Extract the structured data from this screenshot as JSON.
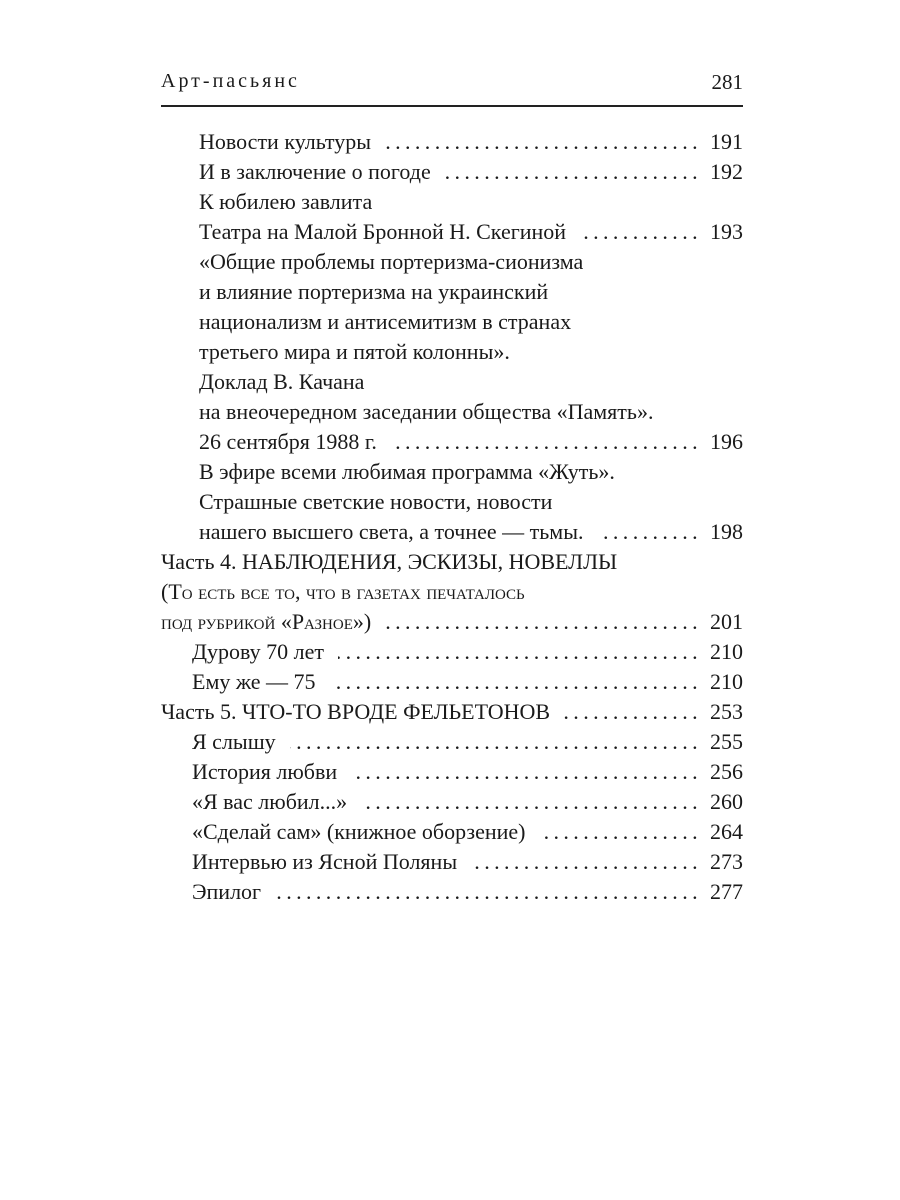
{
  "running_head": {
    "title": "Арт-пасьянс",
    "page_number": "281"
  },
  "toc": [
    {
      "text": "Новости культуры",
      "page": "191",
      "level": 2
    },
    {
      "text": "И в заключение о погоде",
      "page": "192",
      "level": 2
    },
    {
      "text": "К юбилею завлита",
      "page": null,
      "level": 2
    },
    {
      "text": "Театра на Малой Бронной Н. Скегиной",
      "page": "193",
      "level": 2
    },
    {
      "text": "«Общие проблемы портеризма-сионизма",
      "page": null,
      "level": 2
    },
    {
      "text": "и влияние портеризма  на украинский",
      "page": null,
      "level": 2
    },
    {
      "text": "национализм и антисемитизм в странах",
      "page": null,
      "level": 2
    },
    {
      "text": "третьего мира и пятой колонны».",
      "page": null,
      "level": 2
    },
    {
      "text": "Доклад В. Качана",
      "page": null,
      "level": 2
    },
    {
      "text": "на внеочередном заседании общества «Память».",
      "page": null,
      "level": 2
    },
    {
      "text": "26 сентября 1988 г.",
      "page": "196",
      "level": 2
    },
    {
      "text": "В эфире всеми любимая программа «Жуть».",
      "page": null,
      "level": 2
    },
    {
      "text": "Страшные светские новости, новости",
      "page": null,
      "level": 2
    },
    {
      "text": "нашего высшего света, а точнее — тьмы.",
      "page": "198",
      "level": 2
    },
    {
      "text": "Часть 4. НАБЛЮДЕНИЯ, ЭСКИЗЫ, НОВЕЛЛЫ",
      "page": null,
      "level": 0
    },
    {
      "text": "(То есть все то, что в газетах печаталось",
      "page": null,
      "level": 0,
      "small_caps": true
    },
    {
      "text": "под рубрикой «Разное»)",
      "page": "201",
      "level": 0,
      "small_caps": true
    },
    {
      "text": "Дурову 70 лет",
      "page": "210",
      "level": 1
    },
    {
      "text": "Ему же — 75",
      "page": "210",
      "level": 1
    },
    {
      "text": "Часть 5. ЧТО-ТО ВРОДЕ ФЕЛЬЕТОНОВ",
      "page": "253",
      "level": 0
    },
    {
      "text": "Я слышу",
      "page": "255",
      "level": 1
    },
    {
      "text": "История любви",
      "page": "256",
      "level": 1
    },
    {
      "text": "«Я вас любил...»",
      "page": "260",
      "level": 1
    },
    {
      "text": "«Сделай сам» (книжное оборзение)",
      "page": "264",
      "level": 1
    },
    {
      "text": "Интервью из Ясной Поляны",
      "page": "273",
      "level": 1
    },
    {
      "text": "Эпилог",
      "page": "277",
      "level": 1
    }
  ]
}
